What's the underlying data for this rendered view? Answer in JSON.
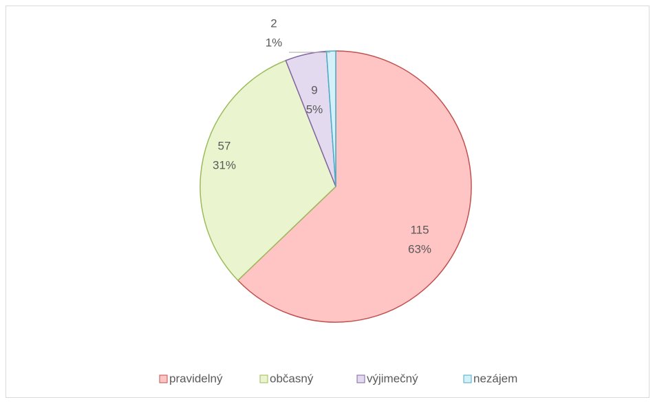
{
  "chart_data": {
    "type": "pie",
    "categories": [
      "pravidelný",
      "občasný",
      "výjimečný",
      "nezájem"
    ],
    "values": [
      115,
      57,
      9,
      2
    ],
    "percent_labels": [
      "63%",
      "31%",
      "5%",
      "1%"
    ],
    "colors": [
      "#ffc4c4",
      "#eaf5d0",
      "#e4daef",
      "#d4f0f8"
    ],
    "edge_colors": [
      "#c0504d",
      "#9bbb59",
      "#8064a2",
      "#4bacc6"
    ],
    "legend": "bottom"
  }
}
